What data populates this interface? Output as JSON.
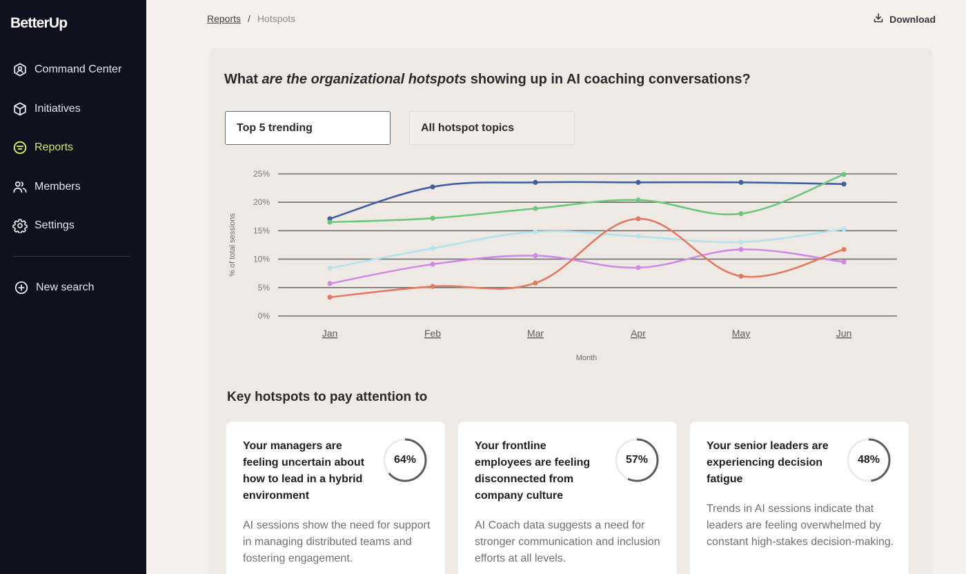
{
  "app": {
    "logo": "BetterUp"
  },
  "sidebar": {
    "items": [
      {
        "label": "Command Center",
        "icon": "hexagon-user-icon",
        "active": false
      },
      {
        "label": "Initiatives",
        "icon": "cube-icon",
        "active": false
      },
      {
        "label": "Reports",
        "icon": "reports-circle-icon",
        "active": true
      },
      {
        "label": "Members",
        "icon": "users-icon",
        "active": false
      },
      {
        "label": "Settings",
        "icon": "gear-icon",
        "active": false
      }
    ],
    "new_search": {
      "label": "New search",
      "icon": "plus-circle-icon"
    },
    "active_color": "#d3e85b"
  },
  "breadcrumb": {
    "parent": "Reports",
    "separator": "/",
    "current": "Hotspots"
  },
  "toolbar": {
    "download_label": "Download",
    "download_icon": "download-icon"
  },
  "main": {
    "question": {
      "prefix": "What ",
      "emphasis": "are the organizational hotspots",
      "suffix": " showing up in AI coaching conversations?"
    },
    "tabs": [
      {
        "label": "Top 5 trending",
        "active": true
      },
      {
        "label": "All hotspot topics",
        "active": false
      }
    ],
    "key_title": "Key hotspots to pay attention to",
    "cards": [
      {
        "title": "Your managers are feeling uncertain about how to lead in a hybrid environment",
        "percent": 64,
        "percent_label": "64%",
        "body": "AI sessions show the need for support in managing distributed teams and fostering engagement."
      },
      {
        "title": "Your frontline employees are feeling disconnected from company culture",
        "percent": 57,
        "percent_label": "57%",
        "body": "AI Coach data suggests a need for stronger communication and inclusion efforts at all levels."
      },
      {
        "title": "Your senior leaders are experiencing decision fatigue",
        "percent": 48,
        "percent_label": "48%",
        "body": "Trends in AI sessions indicate that leaders are feeling overwhelmed by constant high-stakes decision-making."
      }
    ]
  },
  "chart_data": {
    "type": "line",
    "title": "",
    "xlabel": "Month",
    "ylabel": "% of total sessions",
    "categories": [
      "Jan",
      "Feb",
      "Mar",
      "Apr",
      "May",
      "Jun"
    ],
    "yticks": [
      "0%",
      "5%",
      "10%",
      "15%",
      "20%",
      "25%"
    ],
    "ylim": [
      0,
      25
    ],
    "grid": true,
    "legend": "none",
    "series": [
      {
        "name": "Series 1 (dark blue)",
        "color": "#3f5f9e",
        "values": [
          17.1,
          22.7,
          23.5,
          23.5,
          23.5,
          23.2
        ]
      },
      {
        "name": "Series 2 (green)",
        "color": "#6cc67e",
        "values": [
          16.5,
          17.2,
          18.9,
          20.4,
          18.0,
          24.9
        ]
      },
      {
        "name": "Series 3 (light blue)",
        "color": "#b5e3ee",
        "values": [
          8.4,
          11.9,
          14.8,
          14.0,
          13.0,
          15.3
        ]
      },
      {
        "name": "Series 4 (purple)",
        "color": "#cf8ae8",
        "values": [
          5.7,
          9.1,
          10.6,
          8.5,
          11.7,
          9.5
        ]
      },
      {
        "name": "Series 5 (coral)",
        "color": "#e07a63",
        "values": [
          3.3,
          5.2,
          5.8,
          17.1,
          7.0,
          11.7
        ]
      }
    ]
  }
}
